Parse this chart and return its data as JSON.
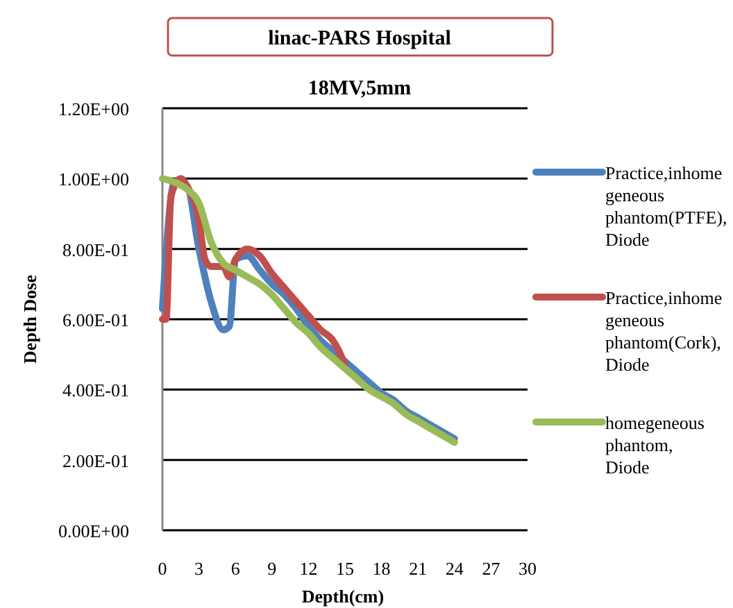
{
  "chart_data": {
    "type": "line",
    "title": "linac-PARS Hospital",
    "subtitle": "18MV,5mm",
    "xlabel": "Depth(cm)",
    "ylabel": "Depth Dose",
    "xlim": [
      0,
      30
    ],
    "xticks": [
      0,
      3,
      6,
      9,
      12,
      15,
      18,
      21,
      24,
      27,
      30
    ],
    "ylim": [
      0,
      1.2
    ],
    "yticks": [
      {
        "value": 0,
        "label": "0.00E+00"
      },
      {
        "value": 0.2,
        "label": "2.00E-01"
      },
      {
        "value": 0.4,
        "label": "4.00E-01"
      },
      {
        "value": 0.6,
        "label": "6.00E-01"
      },
      {
        "value": 0.8,
        "label": "8.00E-01"
      },
      {
        "value": 1,
        "label": "1.00E+00"
      },
      {
        "value": 1.2,
        "label": "1.20E+00"
      }
    ],
    "grid": "y",
    "legend": "right",
    "marker": "none",
    "line_style": "solid",
    "series": [
      {
        "name": "Practice,inhome geneous phantom(PTFE), Diode",
        "color": "#4f81bd",
        "x": [
          0,
          1,
          2,
          3,
          4,
          5,
          5.5,
          6,
          7,
          8,
          9,
          10,
          11,
          12,
          13,
          14,
          15,
          16,
          17,
          18,
          19,
          20,
          21,
          22,
          23,
          24
        ],
        "values": [
          0.63,
          0.99,
          0.98,
          0.8,
          0.65,
          0.57,
          0.58,
          0.77,
          0.78,
          0.74,
          0.7,
          0.67,
          0.63,
          0.58,
          0.54,
          0.51,
          0.48,
          0.45,
          0.42,
          0.39,
          0.37,
          0.34,
          0.32,
          0.3,
          0.28,
          0.26
        ]
      },
      {
        "name": "Practice,inhome geneous phantom(Cork), Diode",
        "color": "#c0504d",
        "x": [
          0,
          0.3,
          0.7,
          1.5,
          2,
          3,
          3.5,
          4,
          5,
          5.5,
          6,
          7,
          8,
          9,
          10,
          11,
          12,
          13,
          14,
          14.5,
          15
        ],
        "values": [
          0.6,
          0.6,
          0.95,
          1.0,
          0.98,
          0.88,
          0.77,
          0.75,
          0.75,
          0.72,
          0.77,
          0.8,
          0.78,
          0.73,
          0.69,
          0.65,
          0.61,
          0.57,
          0.54,
          0.51,
          0.47
        ]
      },
      {
        "name": "homegeneous phantom, Diode",
        "color": "#9bbb59",
        "x": [
          0,
          1,
          2,
          3,
          4,
          5,
          6,
          7,
          8,
          9,
          10,
          11,
          12,
          13,
          14,
          15,
          16,
          17,
          18,
          19,
          20,
          21,
          22,
          23,
          24
        ],
        "values": [
          1.0,
          0.99,
          0.97,
          0.93,
          0.82,
          0.76,
          0.74,
          0.72,
          0.7,
          0.67,
          0.63,
          0.59,
          0.56,
          0.52,
          0.49,
          0.46,
          0.43,
          0.4,
          0.38,
          0.36,
          0.33,
          0.31,
          0.29,
          0.27,
          0.25
        ]
      }
    ]
  }
}
